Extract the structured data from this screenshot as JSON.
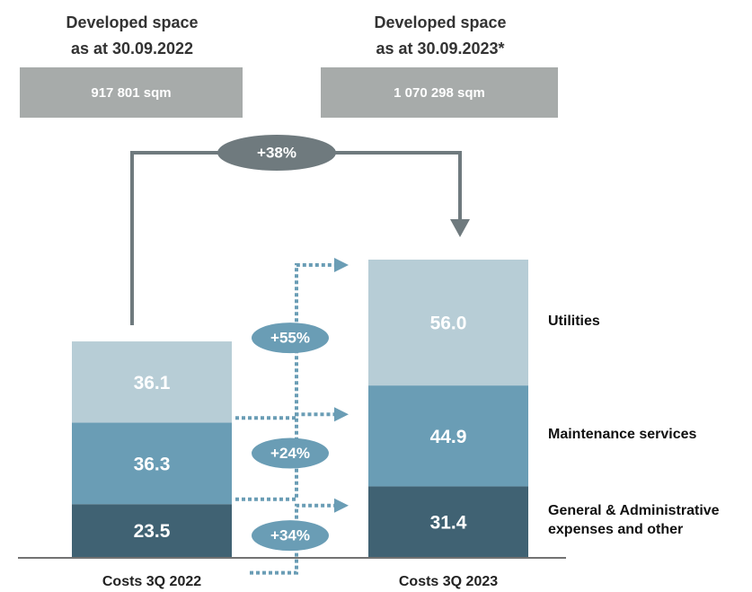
{
  "chart_data": {
    "type": "bar",
    "stacked": true,
    "categories": [
      "Costs 3Q 2022",
      "Costs 3Q 2023"
    ],
    "series": [
      {
        "name": "General & Administrative expenses and other",
        "color": "#406273",
        "values": [
          23.5,
          31.4
        ]
      },
      {
        "name": "Maintenance services",
        "color": "#6a9db5",
        "values": [
          36.3,
          44.9
        ]
      },
      {
        "name": "Utilities",
        "color": "#b7cdd6",
        "values": [
          36.1,
          56.0
        ],
        "value_labels": [
          "36.1",
          "56.0"
        ]
      }
    ],
    "space_headers": [
      [
        "Developed space",
        "as at 30.09.2022"
      ],
      [
        "Developed space",
        "as at 30.09.2023*"
      ]
    ],
    "space_values": [
      "917 801 sqm",
      "1 070 298 sqm"
    ],
    "total_change": "+38%",
    "segment_changes": [
      "+34%",
      "+24%",
      "+55%"
    ]
  }
}
